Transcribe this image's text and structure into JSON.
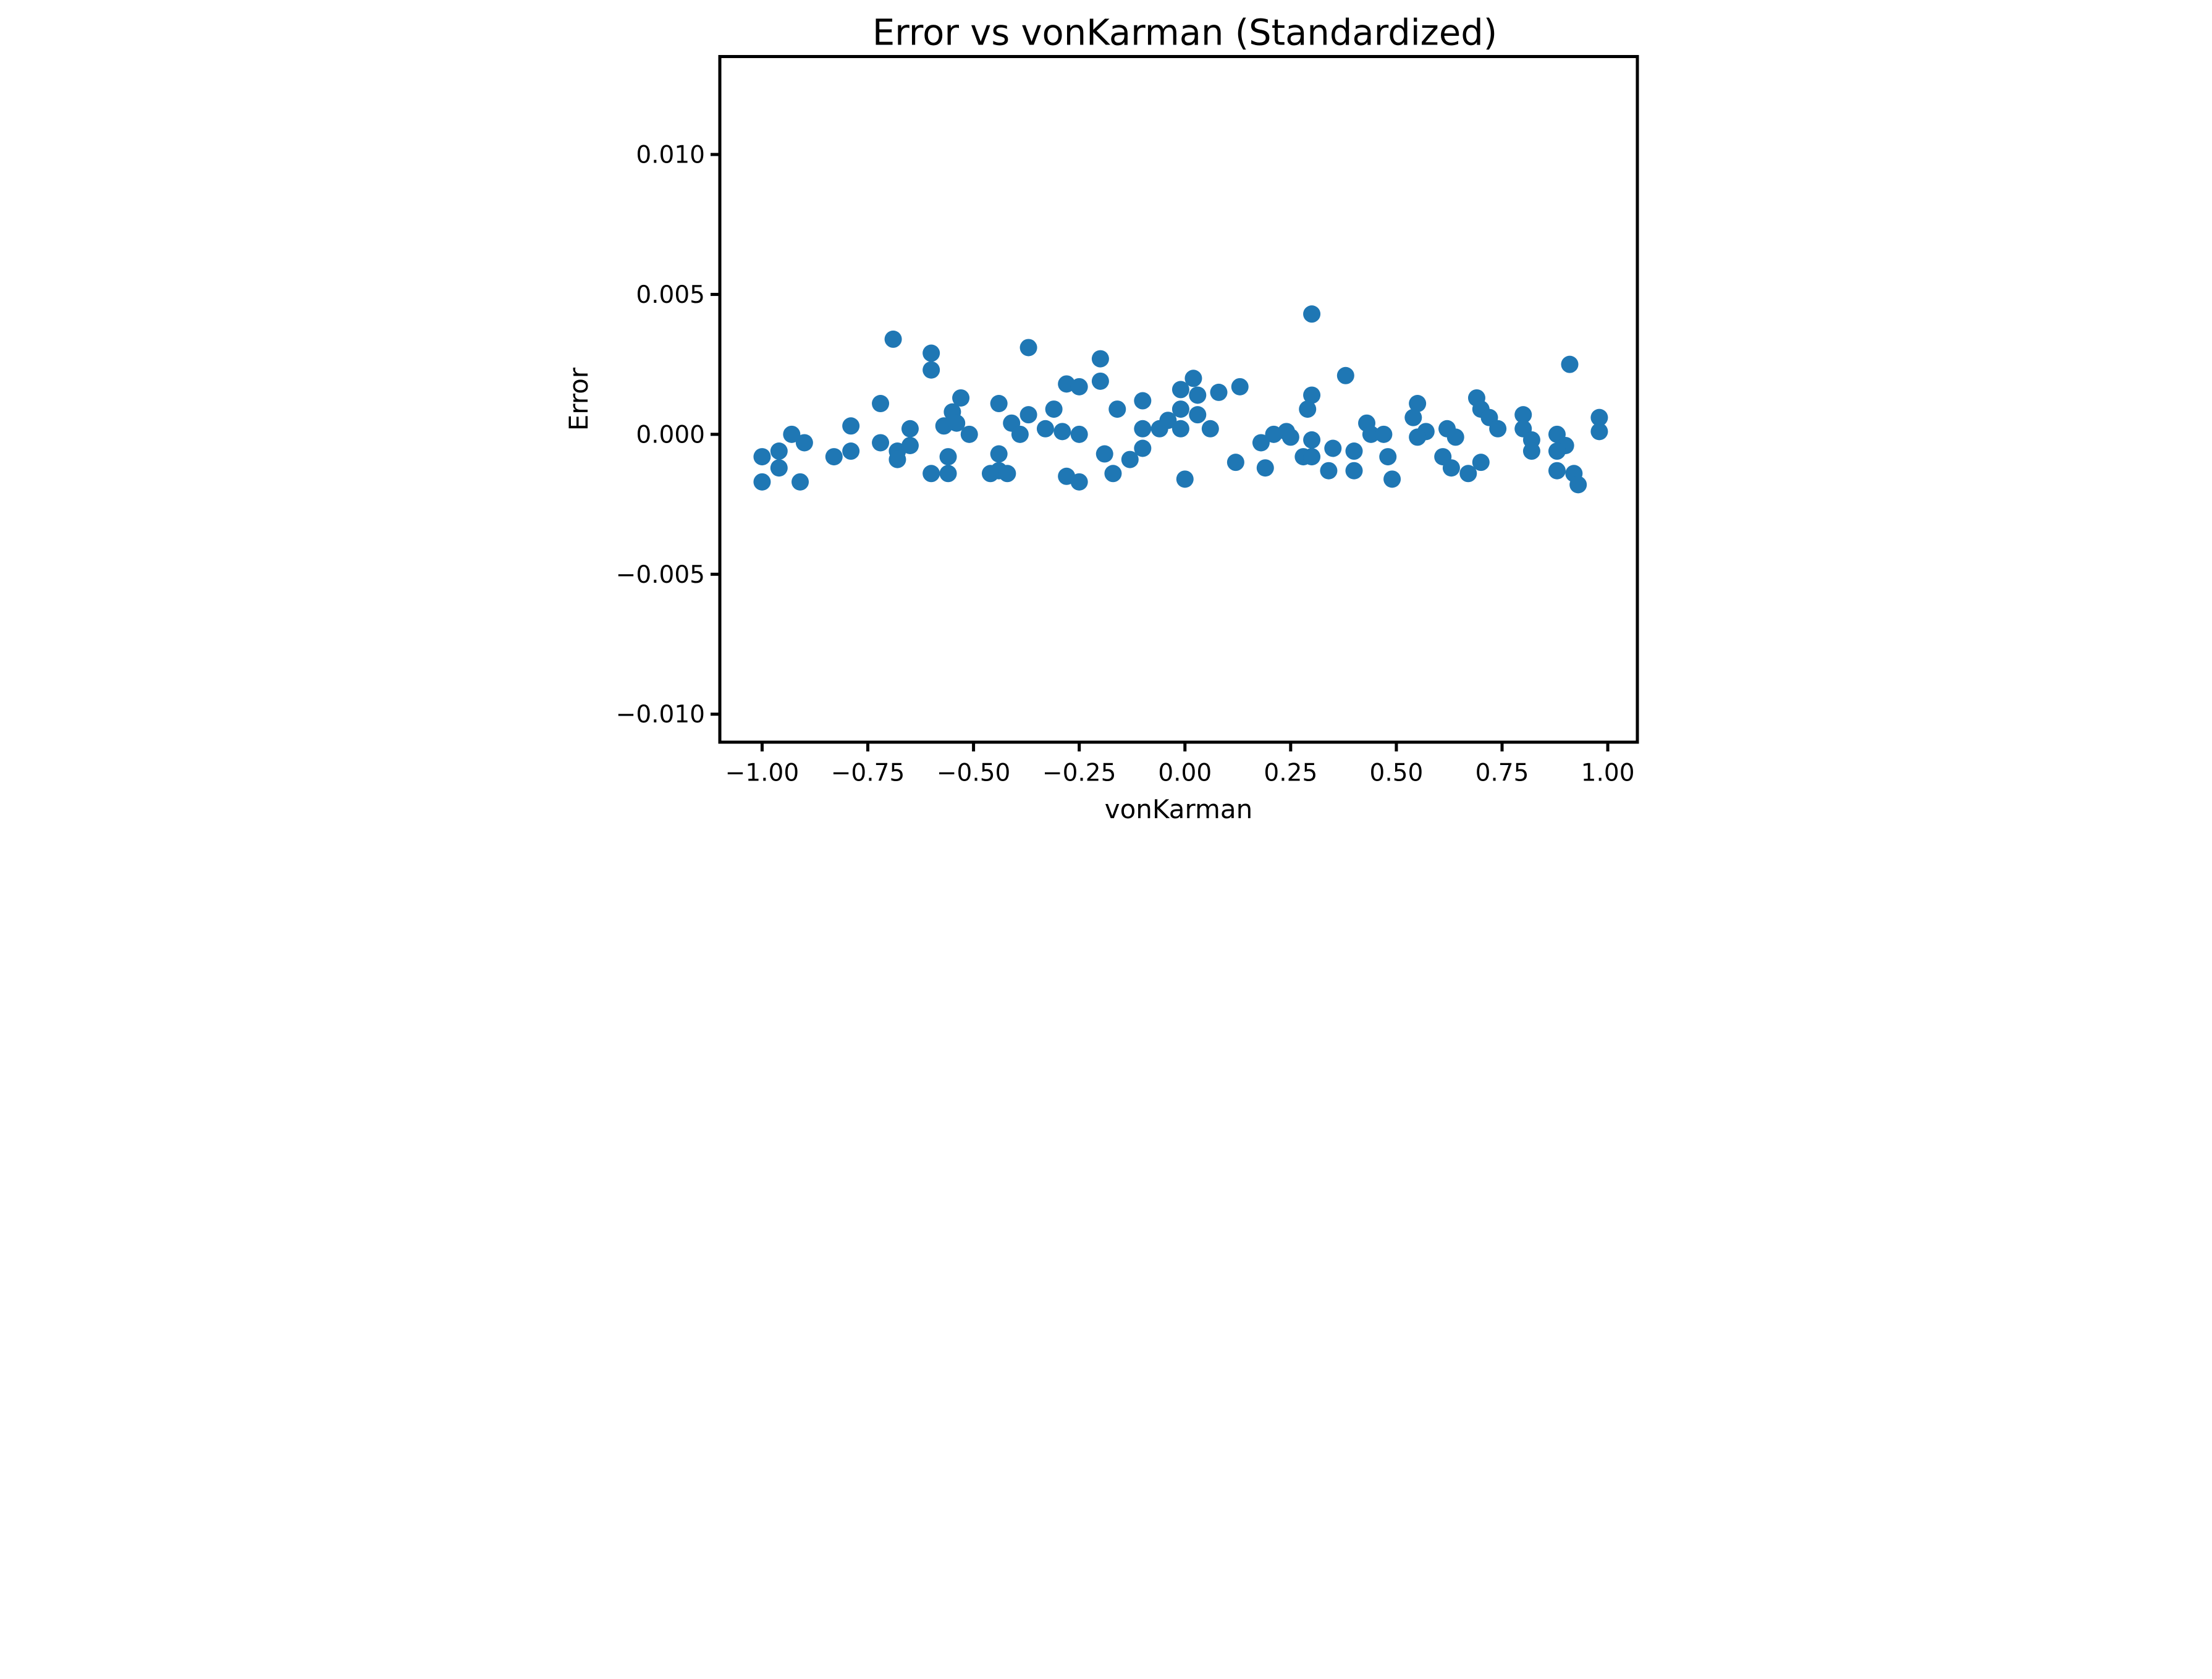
{
  "chart_data": {
    "type": "scatter",
    "title": "Error vs vonKarman (Standardized)",
    "xlabel": "vonKarman",
    "ylabel": "Error",
    "xlim": [
      -1.1,
      1.07
    ],
    "ylim": [
      -0.011,
      0.0135
    ],
    "grid": false,
    "legend": null,
    "marker_color": "#1f77b4",
    "marker_radius_px": 28,
    "x_ticks": [
      -1.0,
      -0.75,
      -0.5,
      -0.25,
      0.0,
      0.25,
      0.5,
      0.75,
      1.0
    ],
    "x_tick_labels": [
      "−1.00",
      "−0.75",
      "−0.50",
      "−0.25",
      "0.00",
      "0.25",
      "0.50",
      "0.75",
      "1.00"
    ],
    "y_ticks": [
      0.01,
      0.005,
      0.0,
      -0.005,
      -0.01
    ],
    "y_tick_labels": [
      "0.010",
      "0.005",
      "0.000",
      "−0.005",
      "−0.010"
    ],
    "points": [
      [
        -1.0,
        -0.0008
      ],
      [
        -1.0,
        -0.0017
      ],
      [
        -0.96,
        -0.0006
      ],
      [
        -0.96,
        -0.0012
      ],
      [
        -0.93,
        0.0
      ],
      [
        -0.9,
        -0.0003
      ],
      [
        -0.91,
        -0.0017
      ],
      [
        -0.83,
        -0.0008
      ],
      [
        -0.79,
        -0.0006
      ],
      [
        -0.79,
        0.0003
      ],
      [
        -0.72,
        0.0011
      ],
      [
        -0.72,
        -0.0003
      ],
      [
        -0.69,
        0.0034
      ],
      [
        -0.68,
        -0.0006
      ],
      [
        -0.68,
        -0.0009
      ],
      [
        -0.65,
        0.0002
      ],
      [
        -0.65,
        -0.0004
      ],
      [
        -0.6,
        0.0029
      ],
      [
        -0.6,
        0.0023
      ],
      [
        -0.6,
        -0.0014
      ],
      [
        -0.57,
        0.0003
      ],
      [
        -0.55,
        0.0008
      ],
      [
        -0.54,
        0.0004
      ],
      [
        -0.56,
        -0.0008
      ],
      [
        -0.56,
        -0.0014
      ],
      [
        -0.53,
        0.0013
      ],
      [
        -0.51,
        0.0
      ],
      [
        -0.46,
        -0.0014
      ],
      [
        -0.44,
        -0.0013
      ],
      [
        -0.42,
        -0.0014
      ],
      [
        -0.44,
        -0.0007
      ],
      [
        -0.44,
        0.0011
      ],
      [
        -0.41,
        0.0004
      ],
      [
        -0.39,
        0.0
      ],
      [
        -0.37,
        0.0031
      ],
      [
        -0.37,
        0.0007
      ],
      [
        -0.33,
        0.0002
      ],
      [
        -0.31,
        0.0009
      ],
      [
        -0.29,
        0.0001
      ],
      [
        -0.25,
        0.0
      ],
      [
        -0.28,
        0.0018
      ],
      [
        -0.25,
        0.0017
      ],
      [
        -0.28,
        -0.0015
      ],
      [
        -0.25,
        -0.0017
      ],
      [
        -0.2,
        0.0027
      ],
      [
        -0.2,
        0.0019
      ],
      [
        -0.19,
        -0.0007
      ],
      [
        -0.17,
        -0.0014
      ],
      [
        -0.16,
        0.0009
      ],
      [
        -0.13,
        -0.0009
      ],
      [
        -0.1,
        0.0012
      ],
      [
        -0.1,
        0.0002
      ],
      [
        -0.1,
        -0.0005
      ],
      [
        -0.06,
        0.0002
      ],
      [
        -0.04,
        0.0005
      ],
      [
        -0.01,
        0.0016
      ],
      [
        -0.01,
        0.0009
      ],
      [
        -0.01,
        0.0002
      ],
      [
        0.02,
        0.002
      ],
      [
        0.03,
        0.0014
      ],
      [
        0.03,
        0.0007
      ],
      [
        0.0,
        -0.0016
      ],
      [
        0.06,
        0.0002
      ],
      [
        0.08,
        0.0015
      ],
      [
        0.13,
        0.0017
      ],
      [
        0.12,
        -0.001
      ],
      [
        0.18,
        -0.0003
      ],
      [
        0.19,
        -0.0012
      ],
      [
        0.21,
        0.0
      ],
      [
        0.24,
        0.0001
      ],
      [
        0.25,
        -0.0001
      ],
      [
        0.3,
        0.0043
      ],
      [
        0.3,
        0.0014
      ],
      [
        0.29,
        0.0009
      ],
      [
        0.3,
        -0.0002
      ],
      [
        0.28,
        -0.0008
      ],
      [
        0.3,
        -0.0008
      ],
      [
        0.34,
        -0.0013
      ],
      [
        0.35,
        -0.0005
      ],
      [
        0.38,
        0.0021
      ],
      [
        0.4,
        -0.0006
      ],
      [
        0.4,
        -0.0013
      ],
      [
        0.43,
        0.0004
      ],
      [
        0.44,
        0.0
      ],
      [
        0.47,
        0.0
      ],
      [
        0.48,
        -0.0008
      ],
      [
        0.49,
        -0.0016
      ],
      [
        0.55,
        0.0011
      ],
      [
        0.54,
        0.0006
      ],
      [
        0.57,
        0.0001
      ],
      [
        0.55,
        -0.0001
      ],
      [
        0.62,
        0.0002
      ],
      [
        0.64,
        -0.0001
      ],
      [
        0.61,
        -0.0008
      ],
      [
        0.63,
        -0.0012
      ],
      [
        0.67,
        -0.0014
      ],
      [
        0.7,
        -0.001
      ],
      [
        0.69,
        0.0013
      ],
      [
        0.7,
        0.0009
      ],
      [
        0.72,
        0.0006
      ],
      [
        0.74,
        0.0002
      ],
      [
        0.8,
        0.0007
      ],
      [
        0.8,
        0.0002
      ],
      [
        0.82,
        -0.0002
      ],
      [
        0.82,
        -0.0006
      ],
      [
        0.88,
        0.0
      ],
      [
        0.9,
        -0.0004
      ],
      [
        0.88,
        -0.0006
      ],
      [
        0.88,
        -0.0013
      ],
      [
        0.92,
        -0.0014
      ],
      [
        0.93,
        -0.0018
      ],
      [
        0.91,
        0.0025
      ],
      [
        0.98,
        0.0006
      ],
      [
        0.98,
        0.0001
      ]
    ]
  }
}
